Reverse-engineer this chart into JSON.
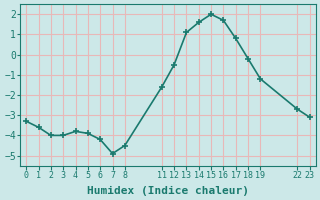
{
  "x": [
    0,
    1,
    2,
    3,
    4,
    5,
    6,
    7,
    8,
    11,
    12,
    13,
    14,
    15,
    16,
    17,
    18,
    19,
    22,
    23
  ],
  "y": [
    -3.3,
    -3.6,
    -4.0,
    -4.0,
    -3.8,
    -3.9,
    -4.2,
    -4.9,
    -4.5,
    -1.6,
    -0.5,
    1.1,
    1.6,
    2.0,
    1.7,
    0.8,
    -0.2,
    -1.2,
    -2.7,
    -3.1
  ],
  "line_color": "#1a7a6e",
  "marker": "+",
  "bg_color": "#cce8e8",
  "grid_color": "#e8b8b8",
  "xlabel": "Humidex (Indice chaleur)",
  "ylim": [
    -5.5,
    2.5
  ],
  "yticks": [
    -5,
    -4,
    -3,
    -2,
    -1,
    0,
    1,
    2
  ],
  "xtick_labels": [
    "0",
    "1",
    "2",
    "3",
    "4",
    "5",
    "6",
    "7",
    "8",
    "11",
    "12",
    "13",
    "14",
    "15",
    "16",
    "17",
    "18",
    "19",
    "22",
    "23"
  ],
  "xtick_positions": [
    0,
    1,
    2,
    3,
    4,
    5,
    6,
    7,
    8,
    11,
    12,
    13,
    14,
    15,
    16,
    17,
    18,
    19,
    22,
    23
  ],
  "axis_color": "#1a7a6e",
  "text_color": "#1a7a6e",
  "linewidth": 1.2,
  "markersize": 5
}
